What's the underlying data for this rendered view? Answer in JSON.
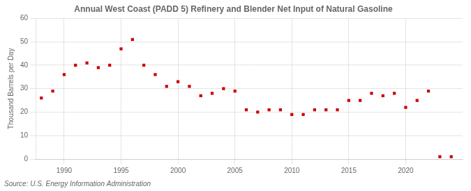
{
  "chart_data": {
    "type": "scatter",
    "title": "Annual West Coast (PADD 5) Refinery and Blender Net Input of Natural Gasoline",
    "ylabel": "Thousand Barrels per Day",
    "annotations": [
      "Source: U.S. Energy Information Administration"
    ],
    "x": [
      1988,
      1989,
      1990,
      1991,
      1992,
      1993,
      1994,
      1995,
      1996,
      1997,
      1998,
      1999,
      2000,
      2001,
      2002,
      2003,
      2004,
      2005,
      2006,
      2007,
      2008,
      2009,
      2010,
      2011,
      2012,
      2013,
      2014,
      2015,
      2016,
      2017,
      2018,
      2019,
      2020,
      2021,
      2022,
      2023,
      2024
    ],
    "values": [
      26,
      29,
      36,
      40,
      41,
      39,
      40,
      47,
      51,
      40,
      36,
      31,
      33,
      31,
      27,
      28,
      30,
      29,
      21,
      20,
      21,
      21,
      19,
      19,
      21,
      21,
      21,
      25,
      25,
      28,
      27,
      28,
      22,
      25,
      29,
      1,
      1
    ],
    "color": "#cc0000",
    "marker": "square",
    "xlim": [
      1987.5,
      2025
    ],
    "xticks": [
      1990,
      1995,
      2000,
      2005,
      2010,
      2015,
      2020
    ],
    "ylim": [
      0,
      60
    ],
    "yticks": [
      0,
      10,
      20,
      30,
      40,
      50,
      60
    ],
    "grid": true
  }
}
